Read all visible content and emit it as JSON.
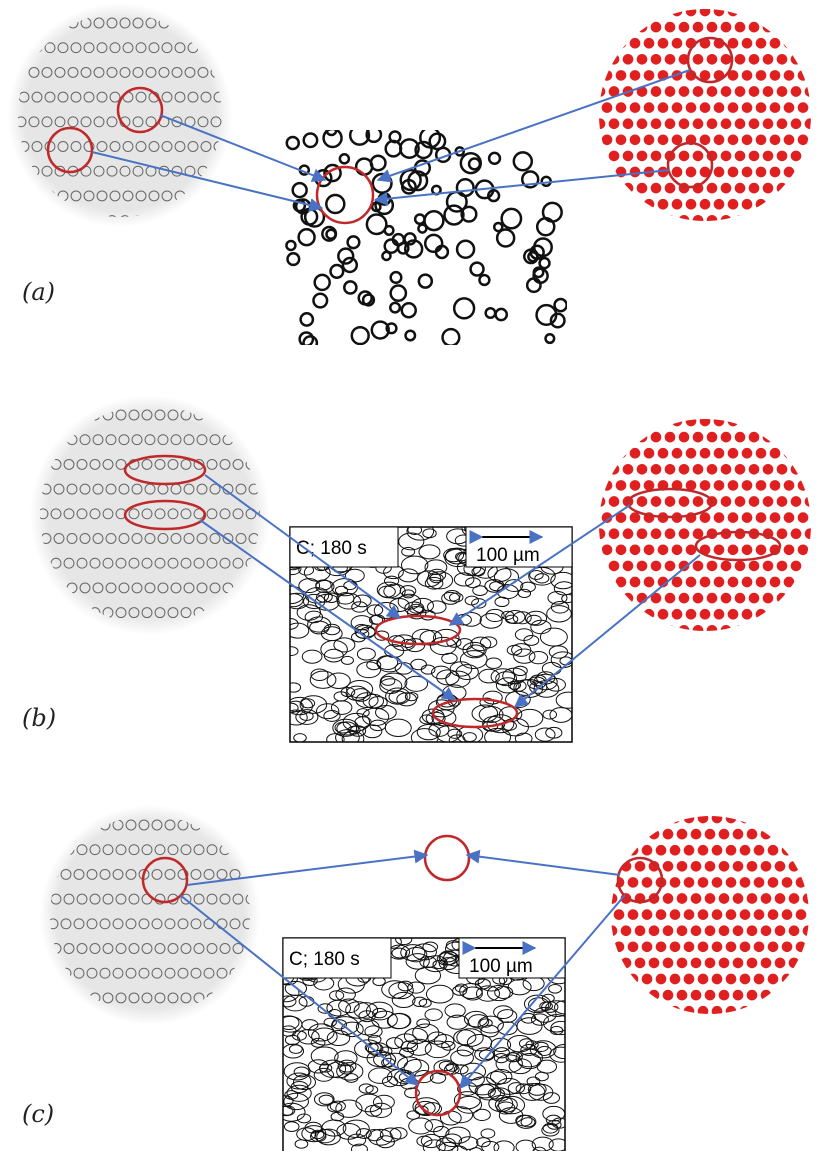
{
  "panels": [
    {
      "label": "(a)"
    },
    {
      "label": "(b)",
      "inset": {
        "condition": "C; 180 s",
        "scale": "100 µm"
      }
    },
    {
      "label": "(c)",
      "inset": {
        "condition": "C; 180 s",
        "scale": "100 µm"
      }
    }
  ]
}
